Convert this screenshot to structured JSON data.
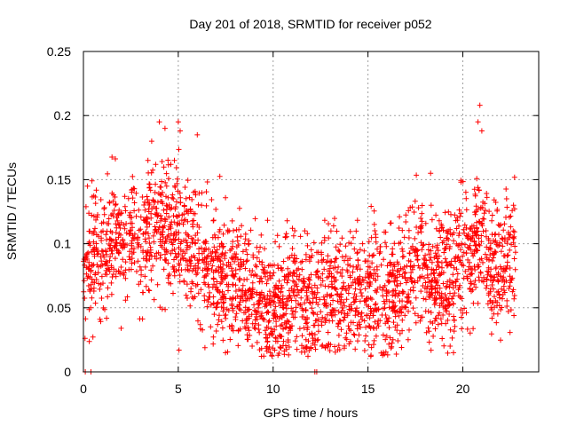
{
  "chart_data": {
    "type": "scatter",
    "title": "Day 201 of 2018, SRMTID for receiver p052",
    "xlabel": "GPS time / hours",
    "ylabel": "SRMTID / TECUs",
    "xlim": [
      0,
      24
    ],
    "ylim": [
      0,
      0.25
    ],
    "x_ticks": [
      0,
      5,
      10,
      15,
      20
    ],
    "x_tick_labels": [
      "0",
      "5",
      "10",
      "15",
      "20"
    ],
    "y_ticks": [
      0,
      0.05,
      0.1,
      0.15,
      0.2,
      0.25
    ],
    "y_tick_labels": [
      "0",
      "0.05",
      "0.1",
      "0.15",
      "0.2",
      "0.25"
    ],
    "grid": true,
    "marker": "plus",
    "color": "#ff0000",
    "series_summary": [
      {
        "x": 0.0,
        "y": 0.085
      },
      {
        "x": 0.5,
        "y": 0.09
      },
      {
        "x": 1.0,
        "y": 0.095
      },
      {
        "x": 1.5,
        "y": 0.1
      },
      {
        "x": 2.0,
        "y": 0.1
      },
      {
        "x": 2.5,
        "y": 0.105
      },
      {
        "x": 3.0,
        "y": 0.105
      },
      {
        "x": 3.5,
        "y": 0.11
      },
      {
        "x": 4.0,
        "y": 0.115
      },
      {
        "x": 4.5,
        "y": 0.112
      },
      {
        "x": 5.0,
        "y": 0.11
      },
      {
        "x": 5.5,
        "y": 0.1
      },
      {
        "x": 6.0,
        "y": 0.09
      },
      {
        "x": 6.5,
        "y": 0.08
      },
      {
        "x": 7.0,
        "y": 0.075
      },
      {
        "x": 7.5,
        "y": 0.07
      },
      {
        "x": 8.0,
        "y": 0.068
      },
      {
        "x": 8.5,
        "y": 0.065
      },
      {
        "x": 9.0,
        "y": 0.06
      },
      {
        "x": 9.5,
        "y": 0.052
      },
      {
        "x": 10.0,
        "y": 0.05
      },
      {
        "x": 10.5,
        "y": 0.055
      },
      {
        "x": 11.0,
        "y": 0.058
      },
      {
        "x": 11.5,
        "y": 0.055
      },
      {
        "x": 12.0,
        "y": 0.052
      },
      {
        "x": 12.5,
        "y": 0.055
      },
      {
        "x": 13.0,
        "y": 0.06
      },
      {
        "x": 13.5,
        "y": 0.063
      },
      {
        "x": 14.0,
        "y": 0.062
      },
      {
        "x": 14.5,
        "y": 0.062
      },
      {
        "x": 15.0,
        "y": 0.065
      },
      {
        "x": 15.5,
        "y": 0.065
      },
      {
        "x": 16.0,
        "y": 0.06
      },
      {
        "x": 16.5,
        "y": 0.068
      },
      {
        "x": 17.0,
        "y": 0.075
      },
      {
        "x": 17.5,
        "y": 0.085
      },
      {
        "x": 18.0,
        "y": 0.08
      },
      {
        "x": 18.5,
        "y": 0.07
      },
      {
        "x": 19.0,
        "y": 0.065
      },
      {
        "x": 19.5,
        "y": 0.07
      },
      {
        "x": 20.0,
        "y": 0.085
      },
      {
        "x": 20.5,
        "y": 0.095
      },
      {
        "x": 21.0,
        "y": 0.1
      },
      {
        "x": 21.5,
        "y": 0.085
      },
      {
        "x": 22.0,
        "y": 0.075
      },
      {
        "x": 22.5,
        "y": 0.09
      },
      {
        "x": 22.8,
        "y": 0.095
      }
    ],
    "spread": 0.025,
    "peaks": [
      {
        "x": 4.0,
        "y": 0.195
      },
      {
        "x": 4.3,
        "y": 0.19
      },
      {
        "x": 5.0,
        "y": 0.195
      },
      {
        "x": 5.1,
        "y": 0.188
      },
      {
        "x": 6.0,
        "y": 0.185
      },
      {
        "x": 3.4,
        "y": 0.165
      },
      {
        "x": 3.6,
        "y": 0.18
      },
      {
        "x": 20.9,
        "y": 0.208
      },
      {
        "x": 20.8,
        "y": 0.195
      },
      {
        "x": 21.0,
        "y": 0.188
      },
      {
        "x": 18.3,
        "y": 0.155
      },
      {
        "x": 19.9,
        "y": 0.148
      }
    ],
    "zero_points": [
      0.1,
      0.4,
      12.2,
      12.3
    ]
  }
}
